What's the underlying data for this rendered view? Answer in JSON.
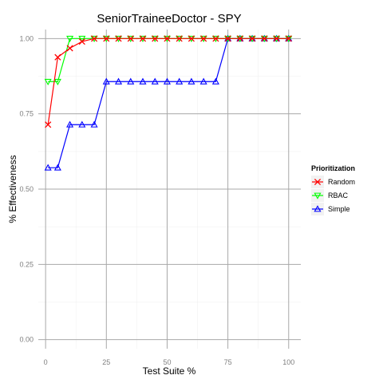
{
  "chart_data": {
    "type": "line",
    "title": "SeniorTraineeDoctor - SPY",
    "xlabel": "Test Suite %",
    "ylabel": "% Effectiveness",
    "xlim": [
      -3,
      105
    ],
    "ylim": [
      -0.03,
      1.03
    ],
    "x_ticks": [
      0,
      25,
      50,
      75,
      100
    ],
    "y_ticks": [
      0.0,
      0.25,
      0.5,
      0.75,
      1.0
    ],
    "y_tick_labels": [
      "0.00",
      "0.25",
      "0.50",
      "0.75",
      "1.00"
    ],
    "grid": true,
    "legend_position": "right",
    "legend_title": "Prioritization",
    "series": [
      {
        "name": "Random",
        "color": "#ff0000",
        "marker": "x-cross",
        "x": [
          1,
          5,
          10,
          15,
          20,
          25,
          30,
          35,
          40,
          45,
          50,
          55,
          60,
          65,
          70,
          75,
          80,
          85,
          90,
          95,
          100
        ],
        "y": [
          0.714,
          0.938,
          0.968,
          0.99,
          1.0,
          1.0,
          1.0,
          1.0,
          1.0,
          1.0,
          1.0,
          1.0,
          1.0,
          1.0,
          1.0,
          1.0,
          1.0,
          1.0,
          1.0,
          1.0,
          1.0
        ]
      },
      {
        "name": "RBAC",
        "color": "#00ff00",
        "marker": "triangle-down",
        "x": [
          1,
          5,
          10,
          15,
          20,
          25,
          30,
          35,
          40,
          45,
          50,
          55,
          60,
          65,
          70,
          75,
          80,
          85,
          90,
          95,
          100
        ],
        "y": [
          0.857,
          0.857,
          1.0,
          1.0,
          1.0,
          1.0,
          1.0,
          1.0,
          1.0,
          1.0,
          1.0,
          1.0,
          1.0,
          1.0,
          1.0,
          1.0,
          1.0,
          1.0,
          1.0,
          1.0,
          1.0
        ]
      },
      {
        "name": "Simple",
        "color": "#0000ff",
        "marker": "triangle-up",
        "x": [
          1,
          5,
          10,
          15,
          20,
          25,
          30,
          35,
          40,
          45,
          50,
          55,
          60,
          65,
          70,
          75,
          80,
          85,
          90,
          95,
          100
        ],
        "y": [
          0.571,
          0.571,
          0.714,
          0.714,
          0.714,
          0.857,
          0.857,
          0.857,
          0.857,
          0.857,
          0.857,
          0.857,
          0.857,
          0.857,
          0.857,
          1.0,
          1.0,
          1.0,
          1.0,
          1.0,
          1.0
        ]
      }
    ]
  }
}
